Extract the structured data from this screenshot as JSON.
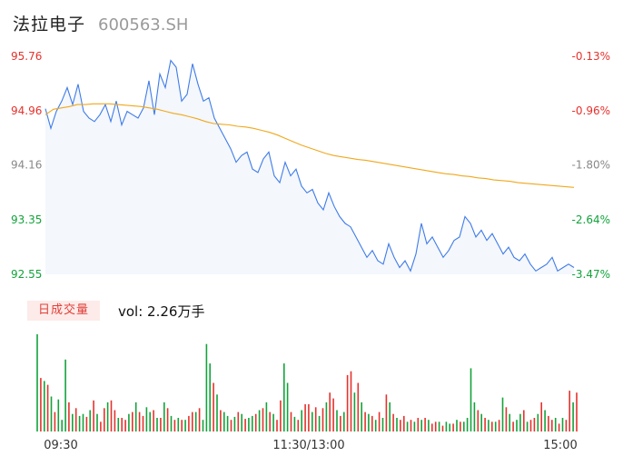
{
  "header": {
    "name": "法拉电子",
    "code": "600563.SH"
  },
  "volume_panel": {
    "tag": "日成交量",
    "label": "vol: 2.26万手"
  },
  "colors": {
    "price_line": "#3f7ce8",
    "avg_line": "#f0a81c",
    "up": "#e5322d",
    "down": "#12a33b",
    "area": "#f4f7fc"
  },
  "chart_data": [
    {
      "type": "line",
      "title": "",
      "ylim": [
        92.55,
        95.76
      ],
      "y_tick_labels": [
        "95.76",
        "94.96",
        "94.16",
        "93.35",
        "92.55"
      ],
      "y_tick_values": [
        95.76,
        94.96,
        94.16,
        93.35,
        92.55
      ],
      "right_tick_labels": [
        "-0.13%",
        "-0.96%",
        "-1.80%",
        "-2.64%",
        "-3.47%"
      ],
      "x_tick_labels": [
        "09:30",
        "11:30/13:00",
        "15:00"
      ],
      "series": [
        {
          "key": "price",
          "values": [
            94.99,
            94.7,
            94.95,
            95.1,
            95.3,
            95.05,
            95.35,
            94.95,
            94.85,
            94.8,
            94.9,
            95.05,
            94.8,
            95.1,
            94.75,
            94.95,
            94.9,
            94.85,
            95.0,
            95.4,
            94.9,
            95.5,
            95.3,
            95.7,
            95.6,
            95.1,
            95.2,
            95.65,
            95.35,
            95.1,
            95.15,
            94.85,
            94.7,
            94.55,
            94.4,
            94.2,
            94.3,
            94.35,
            94.1,
            94.05,
            94.25,
            94.35,
            94.0,
            93.9,
            94.2,
            94.0,
            94.1,
            93.85,
            93.75,
            93.8,
            93.6,
            93.5,
            93.75,
            93.55,
            93.4,
            93.3,
            93.25,
            93.1,
            92.95,
            92.8,
            92.9,
            92.75,
            92.7,
            93.0,
            92.8,
            92.65,
            92.75,
            92.6,
            92.85,
            93.3,
            93.0,
            93.1,
            92.95,
            92.8,
            92.9,
            93.05,
            93.1,
            93.4,
            93.3,
            93.1,
            93.2,
            93.05,
            93.15,
            93.0,
            92.85,
            92.95,
            92.8,
            92.75,
            92.85,
            92.7,
            92.6,
            92.65,
            92.7,
            92.8,
            92.6,
            92.65,
            92.7,
            92.65
          ]
        },
        {
          "key": "avg",
          "values": [
            94.9,
            94.98,
            95.0,
            95.02,
            95.05,
            95.05,
            95.06,
            95.06,
            95.06,
            95.05,
            95.04,
            95.03,
            95.02,
            95.0,
            94.98,
            94.95,
            94.92,
            94.9,
            94.87,
            94.84,
            94.8,
            94.77,
            94.76,
            94.75,
            94.73,
            94.72,
            94.7,
            94.67,
            94.64,
            94.6,
            94.55,
            94.5,
            94.45,
            94.41,
            94.37,
            94.33,
            94.3,
            94.28,
            94.26,
            94.24,
            94.23,
            94.21,
            94.19,
            94.17,
            94.15,
            94.13,
            94.11,
            94.09,
            94.07,
            94.05,
            94.03,
            94.02,
            94.0,
            93.99,
            93.97,
            93.96,
            93.94,
            93.93,
            93.92,
            93.9,
            93.89,
            93.88,
            93.87,
            93.86,
            93.85,
            93.84,
            93.83
          ]
        }
      ]
    },
    {
      "type": "bar",
      "title": "",
      "unit": "万手",
      "ylim": [
        0,
        1
      ],
      "values": [
        1.0,
        0.55,
        0.52,
        0.48,
        0.36,
        0.2,
        0.33,
        0.12,
        0.74,
        0.3,
        0.18,
        0.24,
        0.16,
        0.18,
        0.15,
        0.22,
        0.32,
        0.18,
        0.1,
        0.24,
        0.3,
        0.32,
        0.22,
        0.14,
        0.14,
        0.12,
        0.18,
        0.2,
        0.3,
        0.2,
        0.16,
        0.25,
        0.2,
        0.22,
        0.14,
        0.14,
        0.3,
        0.24,
        0.16,
        0.12,
        0.14,
        0.12,
        0.12,
        0.16,
        0.2,
        0.2,
        0.24,
        0.12,
        0.9,
        0.7,
        0.5,
        0.38,
        0.22,
        0.2,
        0.16,
        0.12,
        0.15,
        0.2,
        0.18,
        0.13,
        0.14,
        0.16,
        0.18,
        0.22,
        0.24,
        0.3,
        0.2,
        0.18,
        0.12,
        0.32,
        0.7,
        0.5,
        0.2,
        0.15,
        0.12,
        0.22,
        0.28,
        0.28,
        0.2,
        0.25,
        0.16,
        0.24,
        0.3,
        0.4,
        0.34,
        0.22,
        0.16,
        0.2,
        0.58,
        0.62,
        0.4,
        0.5,
        0.3,
        0.2,
        0.18,
        0.16,
        0.12,
        0.2,
        0.14,
        0.38,
        0.3,
        0.18,
        0.14,
        0.12,
        0.16,
        0.1,
        0.12,
        0.1,
        0.14,
        0.12,
        0.14,
        0.12,
        0.08,
        0.1,
        0.1,
        0.06,
        0.1,
        0.08,
        0.08,
        0.12,
        0.1,
        0.1,
        0.14,
        0.65,
        0.3,
        0.22,
        0.18,
        0.14,
        0.12,
        0.1,
        0.1,
        0.12,
        0.35,
        0.25,
        0.18,
        0.1,
        0.12,
        0.18,
        0.22,
        0.1,
        0.12,
        0.14,
        0.18,
        0.3,
        0.22,
        0.16,
        0.12,
        0.14,
        0.08,
        0.14,
        0.12,
        0.42,
        0.3,
        0.4
      ],
      "colors": [
        "d",
        "r",
        "d",
        "r",
        "d",
        "r",
        "d",
        "d",
        "d",
        "r",
        "d",
        "r",
        "d",
        "d",
        "r",
        "d",
        "r",
        "d",
        "r",
        "r",
        "d",
        "r",
        "r",
        "d",
        "r",
        "r",
        "d",
        "r",
        "d",
        "r",
        "r",
        "d",
        "d",
        "r",
        "d",
        "r",
        "d",
        "r",
        "d",
        "r",
        "d",
        "r",
        "d",
        "r",
        "r",
        "d",
        "r",
        "d",
        "d",
        "d",
        "r",
        "d",
        "r",
        "d",
        "d",
        "r",
        "d",
        "r",
        "d",
        "r",
        "d",
        "d",
        "r",
        "d",
        "r",
        "d",
        "r",
        "d",
        "r",
        "r",
        "d",
        "d",
        "r",
        "d",
        "r",
        "d",
        "r",
        "r",
        "d",
        "r",
        "d",
        "r",
        "d",
        "r",
        "r",
        "d",
        "r",
        "d",
        "r",
        "r",
        "d",
        "r",
        "d",
        "r",
        "d",
        "r",
        "d",
        "r",
        "d",
        "r",
        "d",
        "r",
        "d",
        "r",
        "r",
        "d",
        "r",
        "d",
        "r",
        "d",
        "r",
        "d",
        "r",
        "r",
        "d",
        "r",
        "d",
        "d",
        "r",
        "d",
        "r",
        "d",
        "d",
        "d",
        "d",
        "r",
        "d",
        "r",
        "d",
        "r",
        "d",
        "r",
        "d",
        "r",
        "d",
        "r",
        "d",
        "d",
        "r",
        "d",
        "r",
        "r",
        "d",
        "r",
        "d",
        "r",
        "r",
        "d",
        "r",
        "d",
        "r",
        "r",
        "d",
        "r"
      ]
    }
  ]
}
